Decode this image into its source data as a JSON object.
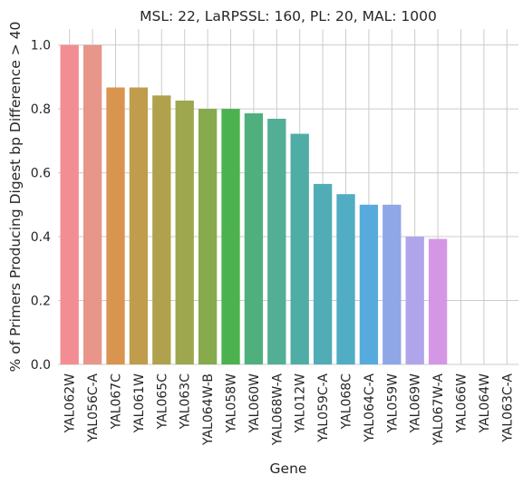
{
  "chart_data": {
    "type": "bar",
    "title": "MSL: 22, LaRPSSL: 160, PL: 20, MAL: 1000",
    "xlabel": "Gene",
    "ylabel": "% of Primers Producing Digest bp Difference > 40",
    "categories": [
      "YAL062W",
      "YAL056C-A",
      "YAL067C",
      "YAL061W",
      "YAL065C",
      "YAL063C",
      "YAL064W-B",
      "YAL058W",
      "YAL060W",
      "YAL068W-A",
      "YAL012W",
      "YAL059C-A",
      "YAL068C",
      "YAL064C-A",
      "YAL059W",
      "YAL069W",
      "YAL067W-A",
      "YAL066W",
      "YAL064W",
      "YAL063C-A"
    ],
    "values": [
      1.0,
      1.0,
      0.867,
      0.867,
      0.842,
      0.826,
      0.8,
      0.8,
      0.786,
      0.769,
      0.722,
      0.565,
      0.533,
      0.5,
      0.5,
      0.4,
      0.393,
      0.0,
      0.0,
      0.0
    ],
    "colors": [
      "#f28e93",
      "#e8958a",
      "#d9944f",
      "#c09c4d",
      "#b0a24d",
      "#9ea64e",
      "#86aa4c",
      "#4cb24f",
      "#50b07d",
      "#52ae94",
      "#4fada6",
      "#50adb5",
      "#50adc3",
      "#56abdc",
      "#8fa7e6",
      "#b0a5ea",
      "#d497e6",
      "#e38fda",
      "#ee8cc6",
      "#f28eaf"
    ],
    "ylim": [
      0,
      1.05
    ],
    "yticks": [
      "0.0",
      "0.2",
      "0.4",
      "0.6",
      "0.8",
      "1.0"
    ],
    "grid": true,
    "legend": false
  }
}
